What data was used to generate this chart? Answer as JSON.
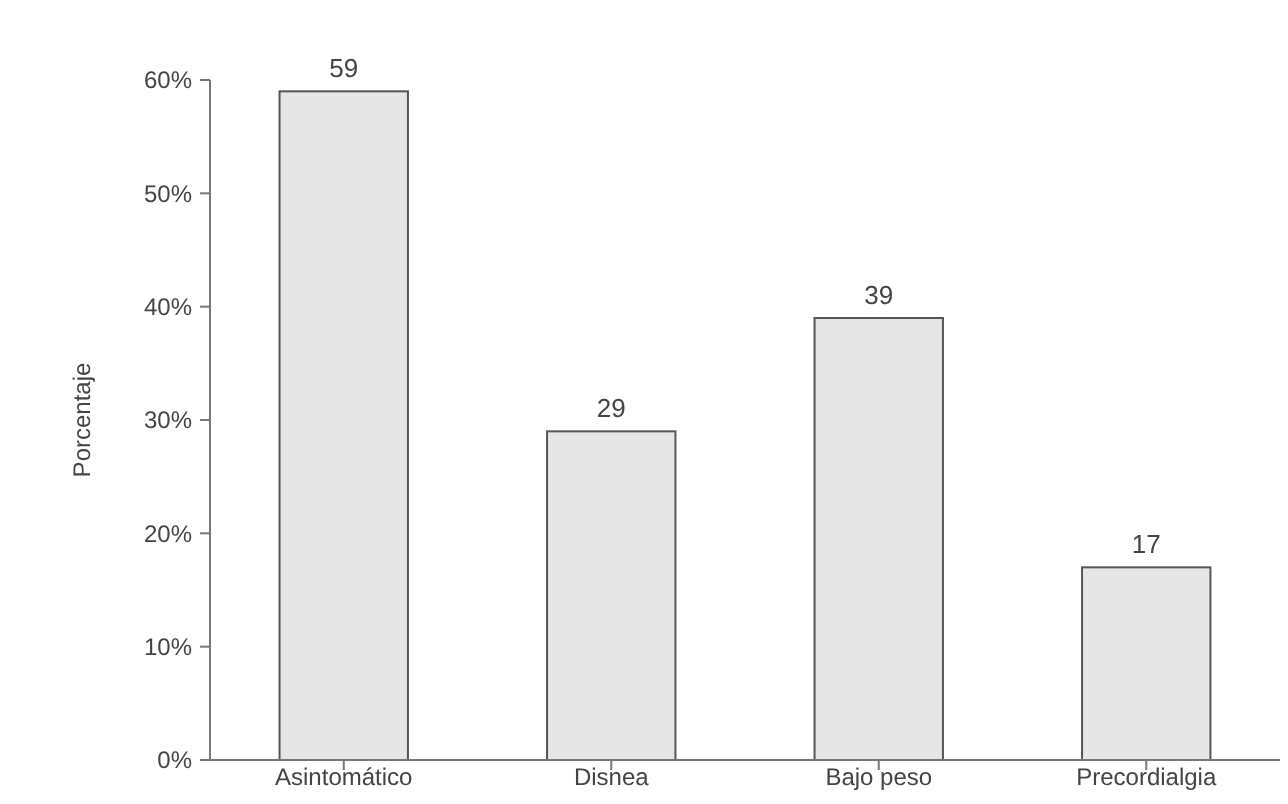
{
  "chart_data": {
    "type": "bar",
    "ylabel": "Porcentaje",
    "categories": [
      "Asintomático",
      "Disnea",
      "Bajo peso",
      "Precordialgia"
    ],
    "values": [
      59,
      29,
      39,
      17
    ],
    "color": "#e6e6e6",
    "data_labels": true,
    "ylim": [
      0,
      60
    ],
    "yticks": [
      {
        "value": 0,
        "label": "0%"
      },
      {
        "value": 10,
        "label": "10%"
      },
      {
        "value": 20,
        "label": "20%"
      },
      {
        "value": 30,
        "label": "30%"
      },
      {
        "value": 40,
        "label": "40%"
      },
      {
        "value": 50,
        "label": "50%"
      },
      {
        "value": 60,
        "label": "60%"
      }
    ],
    "grid": false
  }
}
